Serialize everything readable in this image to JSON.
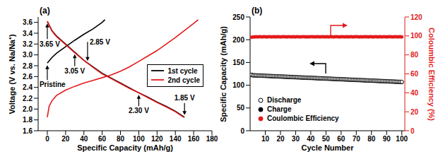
{
  "chart_data": [
    {
      "type": "line",
      "title": "(a)",
      "x_label": "Specific Capacity (mAh/g)",
      "y_label": "Voltage (V vs. Na/Na⁺)",
      "xlim": [
        -10,
        180
      ],
      "xticks": [
        0,
        20,
        40,
        60,
        80,
        100,
        120,
        140,
        160,
        180
      ],
      "ylim": [
        1.6,
        3.7
      ],
      "yticks": [
        1.6,
        1.8,
        {
          "value": 2,
          "label": "2.0"
        },
        2.2,
        2.4,
        2.6,
        2.8,
        {
          "value": 3,
          "label": "3.0"
        },
        3.2,
        3.4,
        3.6
      ],
      "grid": false,
      "legend": "right",
      "series": [
        {
          "name": "1st cycle",
          "color": "#000000",
          "x": [
            0,
            5,
            10,
            20,
            30,
            40,
            50,
            60,
            63,
            null,
            0,
            5,
            10,
            20,
            30,
            40,
            50,
            60,
            70,
            80,
            90,
            100,
            110,
            120,
            130,
            140,
            150
          ],
          "values": [
            2.85,
            2.95,
            3.03,
            3.15,
            3.27,
            3.38,
            3.48,
            3.6,
            3.65,
            null,
            3.62,
            3.45,
            3.35,
            3.2,
            3.05,
            2.9,
            2.78,
            2.66,
            2.57,
            2.48,
            2.39,
            2.3,
            2.22,
            2.13,
            2.05,
            1.96,
            1.85
          ]
        },
        {
          "name": "2nd cycle",
          "color": "#e31a1c",
          "x": [
            0,
            2,
            5,
            10,
            20,
            30,
            40,
            50,
            60,
            70,
            80,
            90,
            100,
            110,
            120,
            130,
            140,
            150,
            160,
            165,
            null,
            0,
            5,
            10,
            20,
            30,
            40,
            50,
            60,
            70,
            80,
            90,
            100,
            110,
            120,
            130,
            140,
            149
          ],
          "values": [
            1.85,
            2.05,
            2.15,
            2.25,
            2.35,
            2.42,
            2.48,
            2.53,
            2.58,
            2.63,
            2.7,
            2.78,
            2.88,
            2.98,
            3.08,
            3.2,
            3.32,
            3.45,
            3.58,
            3.65,
            null,
            3.62,
            3.44,
            3.34,
            3.19,
            3.04,
            2.9,
            2.77,
            2.65,
            2.56,
            2.47,
            2.38,
            2.3,
            2.21,
            2.12,
            2.04,
            1.95,
            1.85
          ]
        }
      ],
      "annotations": [
        {
          "text": "Pristine",
          "x": 0,
          "y": 2.85
        },
        {
          "text": "3.65 V",
          "x": 0,
          "y": 3.62
        },
        {
          "text": "2.85 V",
          "x": 44,
          "y": 2.85
        },
        {
          "text": "3.05 V",
          "x": 30,
          "y": 3.05
        },
        {
          "text": "2.30 V",
          "x": 100,
          "y": 2.3
        },
        {
          "text": "1.85 V",
          "x": 150,
          "y": 1.85
        }
      ]
    },
    {
      "type": "scatter",
      "title": "(b)",
      "x_label": "Cycle Number",
      "y_label": "Specific Capacity (mAh/g)",
      "y2_label": "Coloumbic Efficiency (%)",
      "xlim": [
        0,
        102
      ],
      "xticks": [
        10,
        20,
        30,
        40,
        50,
        60,
        70,
        80,
        90,
        100
      ],
      "ylim": [
        0,
        250
      ],
      "yticks": [
        0,
        50,
        100,
        150,
        200,
        250
      ],
      "y2lim": [
        0,
        120
      ],
      "y2ticks": [
        0,
        20,
        40,
        60,
        80,
        100,
        120
      ],
      "grid": false,
      "legend": "lower left",
      "x": [
        1,
        2,
        3,
        4,
        5,
        6,
        7,
        8,
        9,
        10,
        11,
        12,
        13,
        14,
        15,
        16,
        17,
        18,
        19,
        20,
        21,
        22,
        23,
        24,
        25,
        26,
        27,
        28,
        29,
        30,
        31,
        32,
        33,
        34,
        35,
        36,
        37,
        38,
        39,
        40,
        41,
        42,
        43,
        44,
        45,
        46,
        47,
        48,
        49,
        50,
        51,
        52,
        53,
        54,
        55,
        56,
        57,
        58,
        59,
        60,
        61,
        62,
        63,
        64,
        65,
        66,
        67,
        68,
        69,
        70,
        71,
        72,
        73,
        74,
        75,
        76,
        77,
        78,
        79,
        80,
        81,
        82,
        83,
        84,
        85,
        86,
        87,
        88,
        89,
        90,
        91,
        92,
        93,
        94,
        95,
        96,
        97,
        98,
        99,
        100
      ],
      "series": [
        {
          "name": "Discharge",
          "color": "#000000",
          "marker": "circle_open",
          "values": [
            123,
            122,
            122,
            121.8,
            121.6,
            121.5,
            121.3,
            121.2,
            121,
            120.9,
            120.7,
            120.6,
            120.4,
            120.3,
            120.1,
            120,
            119.8,
            119.7,
            119.5,
            119.4,
            119.2,
            119.1,
            118.9,
            118.8,
            118.6,
            118.5,
            118.3,
            118.2,
            118,
            117.9,
            117.7,
            117.6,
            117.4,
            117.3,
            117.1,
            117,
            116.8,
            116.7,
            116.5,
            116.4,
            116.2,
            116.1,
            115.9,
            115.8,
            115.6,
            115.5,
            115.3,
            115.2,
            115,
            114.9,
            114.7,
            114.6,
            114.4,
            114.3,
            114.1,
            114,
            113.8,
            113.7,
            113.5,
            113.4,
            113.2,
            113.1,
            112.9,
            112.8,
            112.6,
            112.5,
            112.3,
            112.2,
            112,
            111.9,
            111.7,
            111.6,
            111.4,
            111.3,
            111.1,
            111,
            110.8,
            110.7,
            110.5,
            110.4,
            110.2,
            110.1,
            109.9,
            109.8,
            109.6,
            109.5,
            109.3,
            109.2,
            109,
            108.9,
            108.7,
            108.6,
            108.4,
            108.3,
            108.1,
            108,
            107.8,
            107.7,
            107.5,
            107.4
          ]
        },
        {
          "name": "Charge",
          "color": "#000000",
          "marker": "circle",
          "values": [
            121.5,
            120.8,
            120.8,
            120.6,
            120.4,
            120.3,
            120.1,
            120,
            119.8,
            119.7,
            119.5,
            119.4,
            119.2,
            119.1,
            118.9,
            118.8,
            118.6,
            118.5,
            118.3,
            118.2,
            118,
            117.9,
            117.7,
            117.6,
            117.4,
            117.3,
            117.1,
            117,
            116.8,
            116.7,
            116.5,
            116.4,
            116.2,
            116.1,
            115.9,
            115.8,
            115.6,
            115.5,
            115.3,
            115.2,
            115,
            114.9,
            114.7,
            114.6,
            114.4,
            114.3,
            114.1,
            114,
            113.8,
            113.7,
            113.5,
            113.4,
            113.2,
            113.1,
            112.9,
            112.8,
            112.6,
            112.5,
            112.3,
            112.2,
            112,
            111.9,
            111.7,
            111.6,
            111.4,
            111.3,
            111.1,
            111,
            110.8,
            110.7,
            110.5,
            110.4,
            110.2,
            110.1,
            109.9,
            109.8,
            109.6,
            109.5,
            109.3,
            109.2,
            109,
            108.9,
            108.7,
            108.6,
            108.4,
            108.3,
            108.1,
            108,
            107.8,
            107.7,
            107.5,
            107.4,
            107.2,
            107.1,
            106.9,
            106.8,
            106.6,
            106.5,
            106.3,
            106.2
          ]
        },
        {
          "name": "Coulombic Efficiency",
          "color": "#e31a1c",
          "marker": "circle",
          "axis": "y2",
          "values": [
            98.6,
            98.9,
            99,
            99.1,
            99,
            99.2,
            99.1,
            99,
            99.2,
            99.1,
            99,
            99.1,
            99.2,
            99,
            99.1,
            99.1,
            99,
            99.2,
            99.1,
            99,
            99.1,
            99.2,
            99.1,
            99,
            99.1,
            99.2,
            99,
            99.1,
            99.1,
            99,
            99.2,
            99.1,
            99,
            99.1,
            99.2,
            99.1,
            99,
            99.1,
            99,
            99.2,
            99.1,
            99.1,
            99,
            99.2,
            99.1,
            99,
            99.1,
            99.2,
            99,
            99.1,
            99.1,
            99,
            99.2,
            99.1,
            99,
            99.1,
            99.2,
            99.1,
            99,
            99.1,
            99.2,
            99,
            99.1,
            99.1,
            99,
            99.2,
            99.1,
            99,
            99.1,
            99.2,
            99.1,
            99,
            99.1,
            99,
            99.2,
            99.1,
            99.1,
            99,
            99.2,
            99.1,
            99,
            99.1,
            99.2,
            99,
            99.1,
            99.1,
            99,
            99.2,
            99.1,
            99,
            99.1,
            99.2,
            99.1,
            99,
            99.1,
            99.2,
            99,
            99.1,
            99.1,
            99
          ]
        }
      ]
    }
  ]
}
